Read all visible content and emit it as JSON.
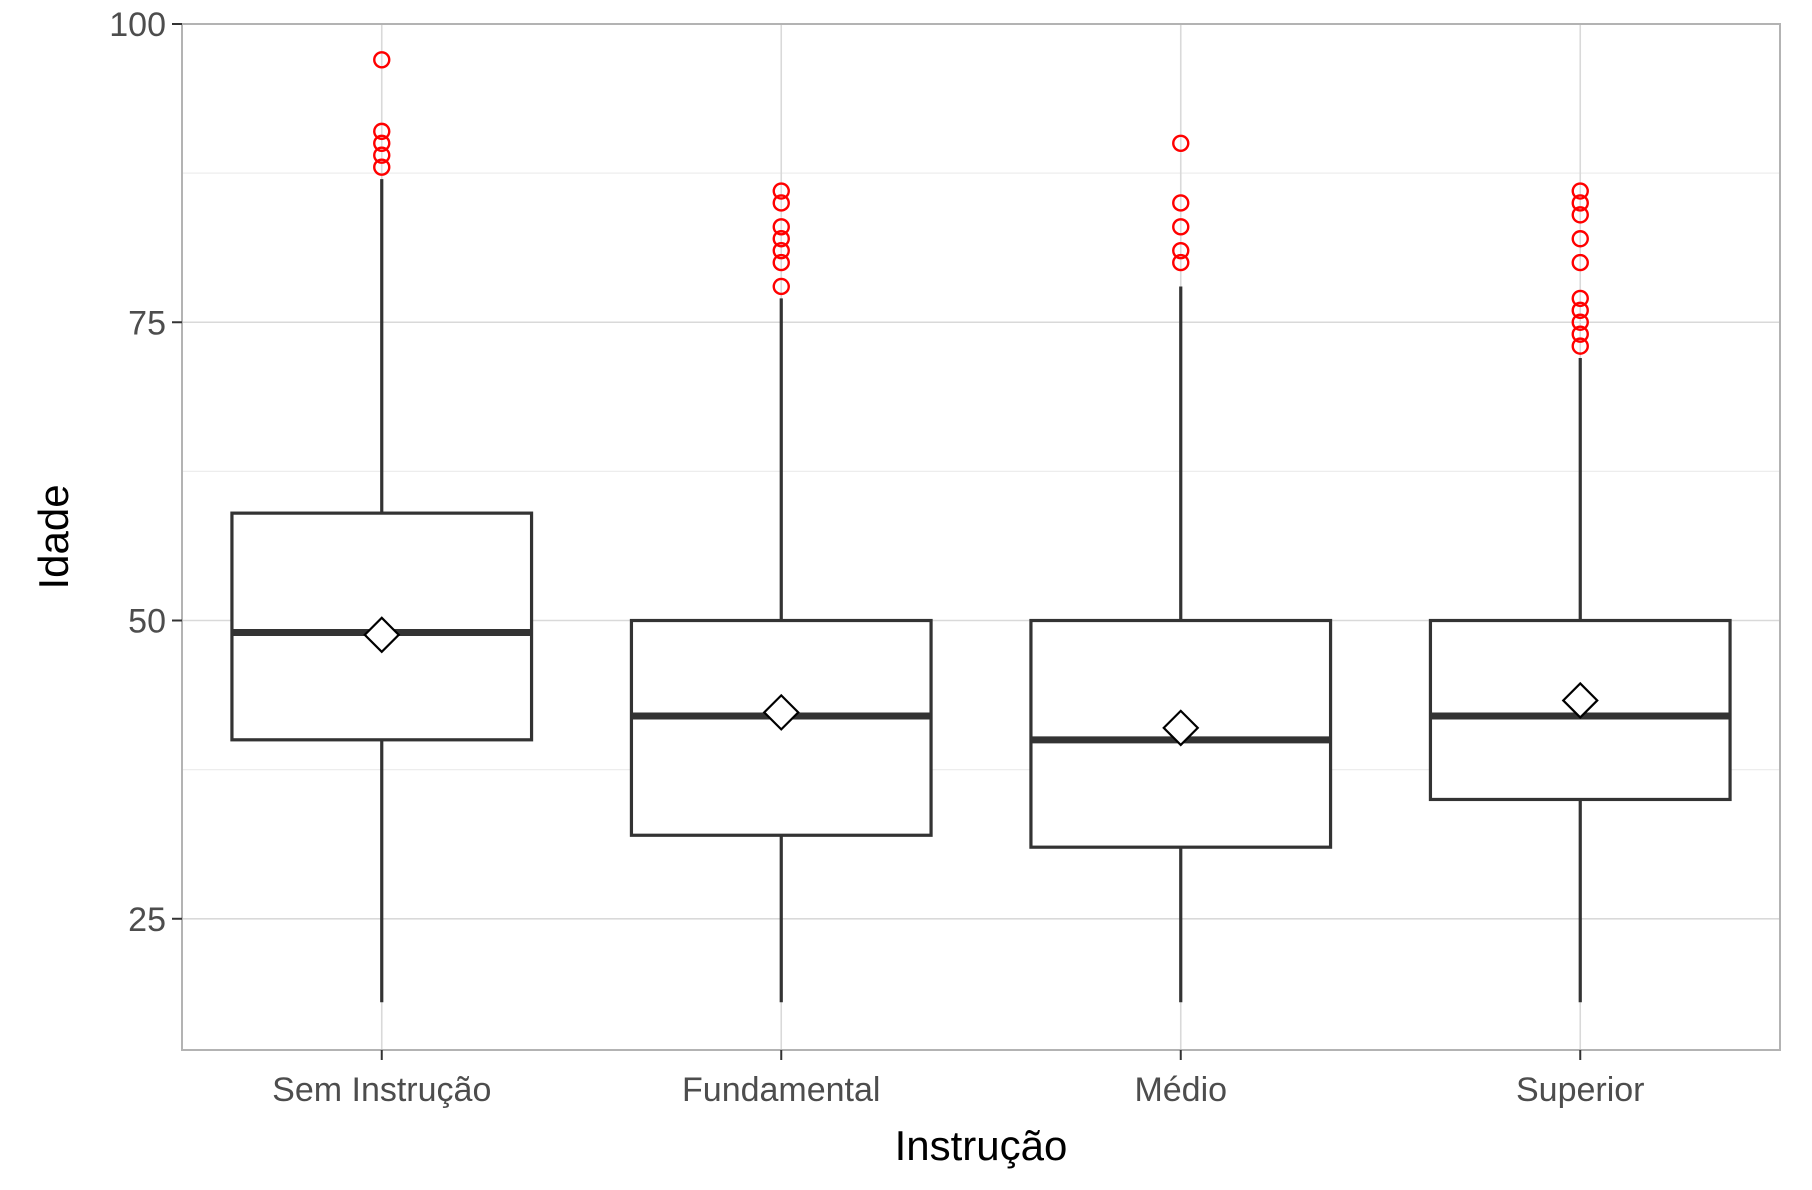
{
  "chart_data": {
    "type": "boxplot",
    "title": "",
    "xlabel": "Instrução",
    "ylabel": "Idade",
    "ylim": [
      14,
      100
    ],
    "yticks": [
      25,
      50,
      75,
      100
    ],
    "grid": true,
    "legend": "none",
    "categories": [
      "Sem Instrução",
      "Fundamental",
      "Médio",
      "Superior"
    ],
    "boxes": [
      {
        "category": "Sem Instrução",
        "min": 18,
        "q1": 40,
        "median": 49,
        "q3": 59,
        "max": 87,
        "mean": 48.8,
        "outliers": [
          88,
          89,
          90,
          91,
          97
        ]
      },
      {
        "category": "Fundamental",
        "min": 18,
        "q1": 32,
        "median": 42,
        "q3": 50,
        "max": 77,
        "mean": 42.3,
        "outliers": [
          78,
          80,
          81,
          82,
          83,
          85,
          86
        ]
      },
      {
        "category": "Médio",
        "min": 18,
        "q1": 31,
        "median": 40,
        "q3": 50,
        "max": 78,
        "mean": 41.0,
        "outliers": [
          80,
          81,
          83,
          85,
          90
        ]
      },
      {
        "category": "Superior",
        "min": 18,
        "q1": 35,
        "median": 42,
        "q3": 50,
        "max": 72,
        "mean": 43.3,
        "outliers": [
          73,
          74,
          75,
          76,
          77,
          80,
          82,
          84,
          85,
          86
        ]
      }
    ],
    "colors": {
      "box_stroke": "#333333",
      "outlier": "#ff0000",
      "mean_fill": "#ffffff",
      "mean_stroke": "#000000",
      "grid_major": "#d9d9d9",
      "grid_minor": "#ededed",
      "panel_border": "#b3b3b3"
    }
  }
}
